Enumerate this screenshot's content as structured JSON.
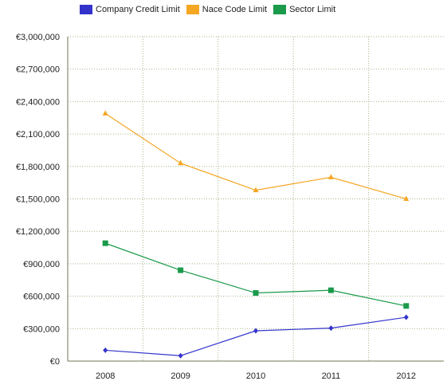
{
  "chart_data": {
    "type": "line",
    "title": "",
    "xlabel": "",
    "ylabel": "",
    "categories": [
      "2008",
      "2009",
      "2010",
      "2011",
      "2012"
    ],
    "y_ticks": [
      "€0",
      "€300,000",
      "€600,000",
      "€900,000",
      "€1,200,000",
      "€1,500,000",
      "€1,800,000",
      "€2,100,000",
      "€2,400,000",
      "€2,700,000",
      "€3,000,000"
    ],
    "ylim": [
      0,
      3000000
    ],
    "grid": true,
    "legend_position": "top",
    "series": [
      {
        "name": "Company Credit Limit",
        "color": "#3333cc",
        "marker": "diamond",
        "values": [
          100000,
          50000,
          280000,
          305000,
          405000
        ]
      },
      {
        "name": "Nace Code Limit",
        "color": "#f5a623",
        "marker": "triangle",
        "values": [
          2290000,
          1830000,
          1580000,
          1700000,
          1500000
        ]
      },
      {
        "name": "Sector Limit",
        "color": "#1a9a4a",
        "marker": "square",
        "values": [
          1090000,
          840000,
          630000,
          655000,
          510000
        ]
      }
    ]
  }
}
